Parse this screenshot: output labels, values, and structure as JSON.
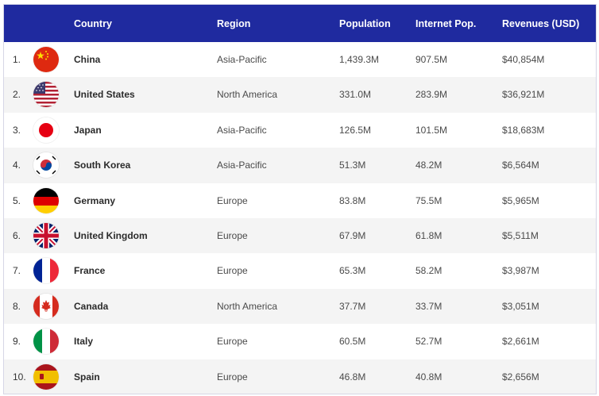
{
  "header": {
    "country": "Country",
    "region": "Region",
    "population": "Population",
    "internet_pop": "Internet Pop.",
    "revenues": "Revenues (USD)"
  },
  "colors": {
    "header_bg": "#1f2a9f",
    "alt_row": "#f4f4f4"
  },
  "rows": [
    {
      "rank": "1.",
      "flag": "china-flag-icon",
      "country": "China",
      "region": "Asia-Pacific",
      "population": "1,439.3M",
      "internet": "907.5M",
      "revenue": "$40,854M"
    },
    {
      "rank": "2.",
      "flag": "usa-flag-icon",
      "country": "United States",
      "region": "North America",
      "population": "331.0M",
      "internet": "283.9M",
      "revenue": "$36,921M"
    },
    {
      "rank": "3.",
      "flag": "japan-flag-icon",
      "country": "Japan",
      "region": "Asia-Pacific",
      "population": "126.5M",
      "internet": "101.5M",
      "revenue": "$18,683M"
    },
    {
      "rank": "4.",
      "flag": "south-korea-flag-icon",
      "country": "South Korea",
      "region": "Asia-Pacific",
      "population": "51.3M",
      "internet": "48.2M",
      "revenue": "$6,564M"
    },
    {
      "rank": "5.",
      "flag": "germany-flag-icon",
      "country": "Germany",
      "region": "Europe",
      "population": "83.8M",
      "internet": "75.5M",
      "revenue": "$5,965M"
    },
    {
      "rank": "6.",
      "flag": "uk-flag-icon",
      "country": "United Kingdom",
      "region": "Europe",
      "population": "67.9M",
      "internet": "61.8M",
      "revenue": "$5,511M"
    },
    {
      "rank": "7.",
      "flag": "france-flag-icon",
      "country": "France",
      "region": "Europe",
      "population": "65.3M",
      "internet": "58.2M",
      "revenue": "$3,987M"
    },
    {
      "rank": "8.",
      "flag": "canada-flag-icon",
      "country": "Canada",
      "region": "North America",
      "population": "37.7M",
      "internet": "33.7M",
      "revenue": "$3,051M"
    },
    {
      "rank": "9.",
      "flag": "italy-flag-icon",
      "country": "Italy",
      "region": "Europe",
      "population": "60.5M",
      "internet": "52.7M",
      "revenue": "$2,661M"
    },
    {
      "rank": "10.",
      "flag": "spain-flag-icon",
      "country": "Spain",
      "region": "Europe",
      "population": "46.8M",
      "internet": "40.8M",
      "revenue": "$2,656M"
    }
  ]
}
